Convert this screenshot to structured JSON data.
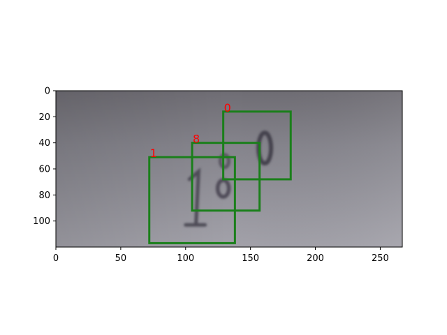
{
  "chart_data": {
    "type": "image_with_bounding_boxes",
    "xlim": [
      0,
      267
    ],
    "ylim": [
      120,
      0
    ],
    "x_ticks": [
      0,
      50,
      100,
      150,
      200,
      250
    ],
    "y_ticks": [
      0,
      20,
      40,
      60,
      80,
      100
    ],
    "x_tick_labels": [
      "0",
      "50",
      "100",
      "150",
      "200",
      "250"
    ],
    "y_tick_labels": [
      "0",
      "20",
      "40",
      "60",
      "80",
      "100"
    ],
    "image_content": "grayscale photo of the digits 1, 8, 0 on a gray surface",
    "box_color": "#1a7f1a",
    "label_color": "#ff0000",
    "boxes": [
      {
        "label": "1",
        "x_min": 72,
        "y_min": 51,
        "x_max": 138,
        "y_max": 117
      },
      {
        "label": "8",
        "x_min": 105,
        "y_min": 40,
        "x_max": 157,
        "y_max": 92
      },
      {
        "label": "0",
        "x_min": 129,
        "y_min": 16,
        "x_max": 181,
        "y_max": 68
      }
    ]
  }
}
